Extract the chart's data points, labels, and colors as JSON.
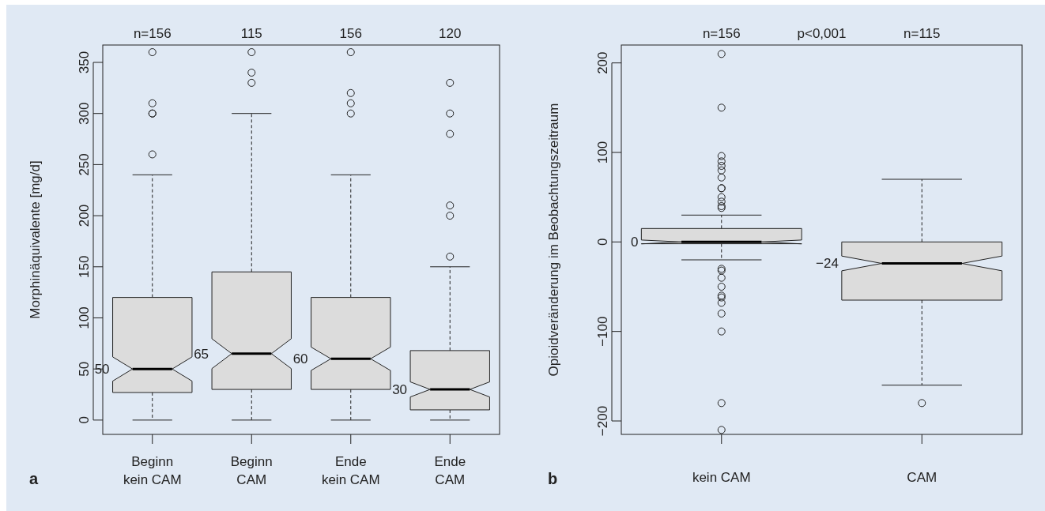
{
  "chart_data": [
    {
      "type": "box",
      "title": "a",
      "ylabel": "Morphinäquivalente [mg/d]",
      "categories": [
        "Beginn kein CAM",
        "Beginn CAM",
        "Ende kein CAM",
        "Ende CAM"
      ],
      "boxes": [
        {
          "low": 0,
          "q1": 27,
          "median": 50,
          "q3": 120,
          "high": 240,
          "outliers": [
            260,
            300,
            300,
            310,
            360
          ]
        },
        {
          "low": 0,
          "q1": 30,
          "median": 65,
          "q3": 145,
          "high": 300,
          "outliers": [
            330,
            340,
            360
          ]
        },
        {
          "low": 0,
          "q1": 30,
          "median": 60,
          "q3": 120,
          "high": 240,
          "outliers": [
            300,
            310,
            320,
            360
          ]
        },
        {
          "low": 0,
          "q1": 10,
          "median": 30,
          "q3": 68,
          "high": 150,
          "outliers": [
            160,
            200,
            210,
            280,
            300,
            330
          ]
        }
      ],
      "color": "#dcdcdc",
      "ylim": [
        -14,
        367
      ],
      "yticks": [
        0,
        50,
        100,
        150,
        200,
        250,
        300,
        350
      ],
      "value_labels": [
        "50",
        "65",
        "60",
        "30"
      ],
      "annotations": [
        "n=156",
        "115",
        "156",
        "120"
      ]
    },
    {
      "type": "box",
      "title": "b",
      "ylabel": "Opioidveränderung im Beobachtungszeitraum",
      "categories": [
        "kein CAM",
        "CAM"
      ],
      "boxes": [
        {
          "low": -20,
          "q1": -2,
          "median": 0,
          "q3": 15,
          "high": 30,
          "outliers": [
            210,
            150,
            96,
            90,
            85,
            80,
            72,
            60,
            60,
            50,
            45,
            40,
            38,
            -30,
            -32,
            -40,
            -50,
            -60,
            -62,
            -68,
            -80,
            -100,
            -180,
            -210
          ]
        },
        {
          "low": -160,
          "q1": -65,
          "median": -24,
          "q3": 0,
          "high": 70,
          "outliers": [
            -180
          ]
        }
      ],
      "color": "#dcdcdc",
      "ylim": [
        -215,
        220
      ],
      "yticks": [
        -200,
        -100,
        0,
        100,
        200
      ],
      "value_labels": [
        "0",
        "−24"
      ],
      "annotations": [
        "n=156",
        "p<0,001",
        "n=115"
      ]
    }
  ]
}
